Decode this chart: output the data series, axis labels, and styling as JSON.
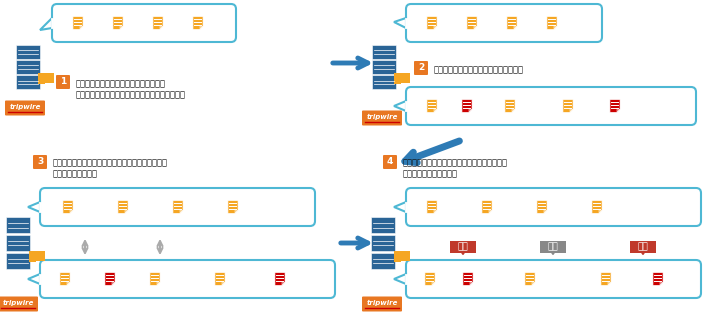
{
  "bg_color": "#ffffff",
  "blue": "#2a6496",
  "orange": "#f5a623",
  "red": "#cc0000",
  "gray": "#999999",
  "dark_red": "#c0392b",
  "light_blue_border": "#4eb8d4",
  "step_orange": "#e87722",
  "arrow_blue": "#2e7bb5",
  "text_color": "#111111",
  "step1_text_l1": "システムのスナップショットを取得し、",
  "step1_text_l2": "ベースライン（正しい状態）として保存します。",
  "step2_text": "新しいスナップショットを取得します。",
  "step3_text_l1": "ベースラインとスナップショットが同じであれば、",
  "step3_text_l2": "変更はありません。",
  "step4_text_l1": "ベースラインとスナップショットが異なれば、",
  "step4_text_l2": "変更として通知します。",
  "label_change": "変更",
  "label_delete": "削除",
  "label_add": "追加",
  "tripwire_text": "tripwire"
}
